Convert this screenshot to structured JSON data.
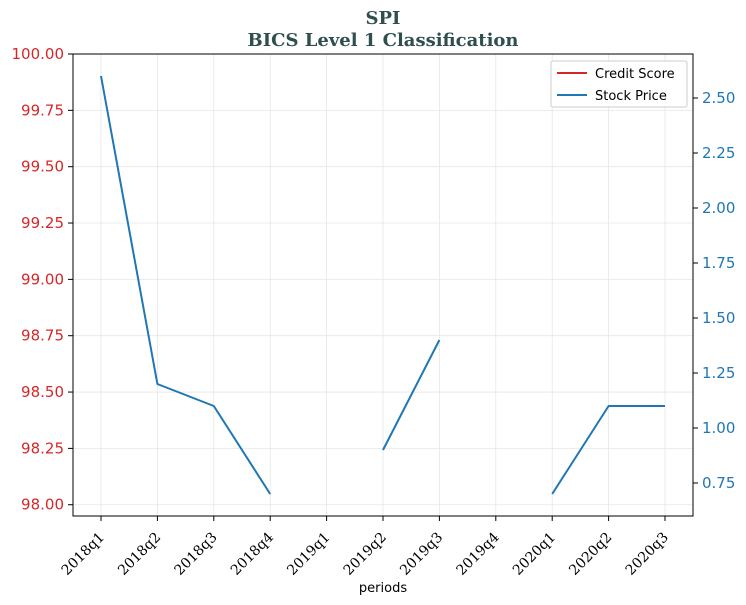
{
  "chart_data": {
    "type": "line",
    "title": "SPI",
    "subtitle": "BICS Level 1 Classification",
    "xlabel": "periods",
    "categories": [
      "2018q1",
      "2018q2",
      "2018q3",
      "2018q4",
      "2019q1",
      "2019q2",
      "2019q3",
      "2019q4",
      "2020q1",
      "2020q2",
      "2020q3"
    ],
    "left_axis": {
      "ylim": [
        97.95,
        100.0
      ],
      "ticks": [
        "98.00",
        "98.25",
        "98.50",
        "98.75",
        "99.00",
        "99.25",
        "99.50",
        "99.75",
        "100.00"
      ],
      "tick_values": [
        98.0,
        98.25,
        98.5,
        98.75,
        99.0,
        99.25,
        99.5,
        99.75,
        100.0
      ],
      "color": "#d62728"
    },
    "right_axis": {
      "ylim": [
        0.6,
        2.7
      ],
      "ticks": [
        "0.75",
        "1.00",
        "1.25",
        "1.50",
        "1.75",
        "2.00",
        "2.25",
        "2.50"
      ],
      "tick_values": [
        0.75,
        1.0,
        1.25,
        1.5,
        1.75,
        2.0,
        2.25,
        2.5
      ],
      "color": "#1f77b4"
    },
    "series": [
      {
        "name": "Credit Score",
        "axis": "left",
        "color": "#d62728",
        "values": [
          null,
          null,
          null,
          null,
          null,
          null,
          null,
          null,
          null,
          null,
          null
        ]
      },
      {
        "name": "Stock Price",
        "axis": "right",
        "color": "#1f77b4",
        "values": [
          2.6,
          1.2,
          1.1,
          0.7,
          null,
          0.9,
          1.4,
          null,
          0.7,
          1.1,
          1.1
        ]
      }
    ],
    "grid": true,
    "legend_position": "top-right"
  }
}
